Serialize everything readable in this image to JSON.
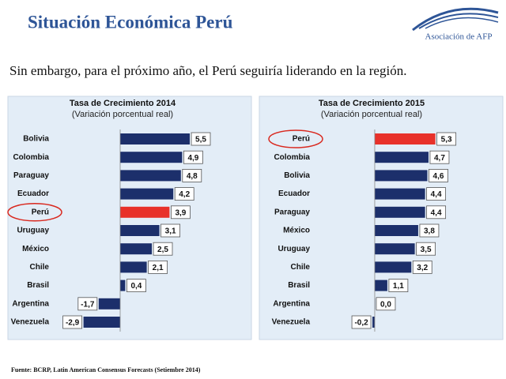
{
  "header": {
    "title": "Situación Económica Perú",
    "logo": "Asociación de AFP"
  },
  "subtitle": "Sin embargo, para el próximo año, el Perú seguiría liderando en la región.",
  "footnote": "Fuente: BCRP, Latin American Consensus Forecasts (Setiembre 2014)",
  "chart_data": [
    {
      "type": "bar",
      "orientation": "horizontal",
      "title": "Tasa de Crecimiento 2014",
      "subtitle": "(Variación porcentual real)",
      "categories": [
        "Bolivia",
        "Colombia",
        "Paraguay",
        "Ecuador",
        "Perú",
        "Uruguay",
        "México",
        "Chile",
        "Brasil",
        "Argentina",
        "Venezuela"
      ],
      "values": [
        5.5,
        4.9,
        4.8,
        4.2,
        3.9,
        3.1,
        2.5,
        2.1,
        0.4,
        -1.7,
        -2.9
      ],
      "value_labels": [
        "5,5",
        "4,9",
        "4,8",
        "4,2",
        "3,9",
        "3,1",
        "2,5",
        "2,1",
        "0,4",
        "-1,7",
        "-2,9"
      ],
      "colors": [
        "#1c2f6b",
        "#1c2f6b",
        "#1c2f6b",
        "#1c2f6b",
        "#e8312a",
        "#1c2f6b",
        "#1c2f6b",
        "#1c2f6b",
        "#1c2f6b",
        "#1c2f6b",
        "#1c2f6b"
      ],
      "highlight_color": "#e8312a",
      "xlim": [
        -3.5,
        6.5
      ]
    },
    {
      "type": "bar",
      "orientation": "horizontal",
      "title": "Tasa de Crecimiento 2015",
      "subtitle": "(Variación porcentual real)",
      "categories": [
        "Perú",
        "Colombia",
        "Bolivia",
        "Ecuador",
        "Paraguay",
        "México",
        "Uruguay",
        "Chile",
        "Brasil",
        "Argentina",
        "Venezuela"
      ],
      "values": [
        5.3,
        4.7,
        4.6,
        4.4,
        4.4,
        3.8,
        3.5,
        3.2,
        1.1,
        0.0,
        -0.2
      ],
      "value_labels": [
        "5,3",
        "4,7",
        "4,6",
        "4,4",
        "4,4",
        "3,8",
        "3,5",
        "3,2",
        "1,1",
        "0,0",
        "-0,2"
      ],
      "colors": [
        "#e8312a",
        "#1c2f6b",
        "#1c2f6b",
        "#1c2f6b",
        "#1c2f6b",
        "#1c2f6b",
        "#1c2f6b",
        "#1c2f6b",
        "#1c2f6b",
        "#1c2f6b",
        "#1c2f6b"
      ],
      "highlight_color": "#e8312a",
      "xlim": [
        -1,
        6.5
      ]
    }
  ]
}
